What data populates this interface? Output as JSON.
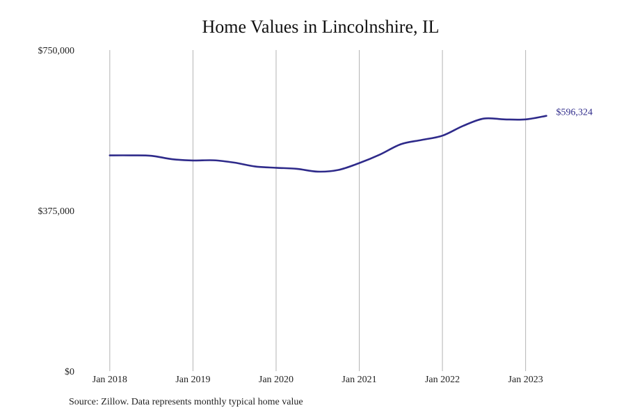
{
  "chart_data": {
    "type": "line",
    "title": "Home Values in Lincolnshire, IL",
    "xlabel": "",
    "ylabel": "",
    "ylim": [
      0,
      750000
    ],
    "y_ticks": [
      0,
      375000,
      750000
    ],
    "y_tick_labels": [
      "$0",
      "$375,000",
      "$750,000"
    ],
    "x_tick_labels": [
      "Jan 2018",
      "Jan 2019",
      "Jan 2020",
      "Jan 2021",
      "Jan 2022",
      "Jan 2023"
    ],
    "x_tick_values": [
      2018.0,
      2019.0,
      2020.0,
      2021.0,
      2022.0,
      2023.0
    ],
    "xlim": [
      2017.65,
      2024.45
    ],
    "grid": "vertical",
    "color": "#2e2a8a",
    "end_label": "$596,324",
    "series": [
      {
        "values": [
          {
            "x": 2018.0,
            "y": 504000
          },
          {
            "x": 2018.25,
            "y": 504000
          },
          {
            "x": 2018.5,
            "y": 503000
          },
          {
            "x": 2018.75,
            "y": 495000
          },
          {
            "x": 2019.0,
            "y": 492000
          },
          {
            "x": 2019.25,
            "y": 492500
          },
          {
            "x": 2019.5,
            "y": 487000
          },
          {
            "x": 2019.75,
            "y": 478000
          },
          {
            "x": 2020.0,
            "y": 475000
          },
          {
            "x": 2020.25,
            "y": 472500
          },
          {
            "x": 2020.5,
            "y": 466000
          },
          {
            "x": 2020.75,
            "y": 470000
          },
          {
            "x": 2021.0,
            "y": 486000
          },
          {
            "x": 2021.25,
            "y": 506000
          },
          {
            "x": 2021.5,
            "y": 530000
          },
          {
            "x": 2021.75,
            "y": 540000
          },
          {
            "x": 2022.0,
            "y": 550000
          },
          {
            "x": 2022.25,
            "y": 573000
          },
          {
            "x": 2022.5,
            "y": 590000
          },
          {
            "x": 2022.75,
            "y": 588000
          },
          {
            "x": 2023.0,
            "y": 588000
          },
          {
            "x": 2023.25,
            "y": 596324
          }
        ]
      }
    ]
  },
  "source_note": "Source: Zillow. Data represents monthly typical home value"
}
